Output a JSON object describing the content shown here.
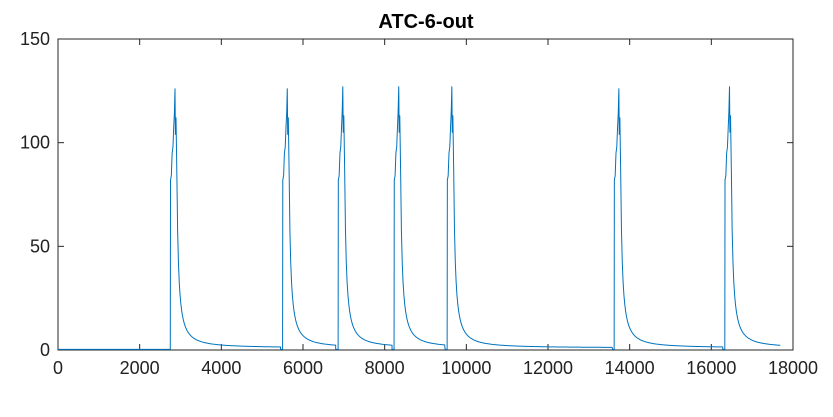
{
  "chart_data": {
    "type": "line",
    "title": "ATC-6-out",
    "xlabel": "",
    "ylabel": "",
    "xlim": [
      0,
      18000
    ],
    "ylim": [
      0,
      150
    ],
    "xticks": [
      0,
      2000,
      4000,
      6000,
      8000,
      10000,
      12000,
      14000,
      16000,
      18000
    ],
    "yticks": [
      0,
      50,
      100,
      150
    ],
    "grid": false,
    "legend": "none",
    "series": [
      {
        "color": "#0072BD",
        "description": "Baseline near 0 with seven sharp spikes (~120-127 peak) followed by exponential decay toward ~1",
        "baseline": 0.3,
        "end_x": 17700,
        "events": [
          {
            "start": 2750,
            "peak": 126,
            "tail_end": 5450
          },
          {
            "start": 5500,
            "peak": 126,
            "tail_end": 6800
          },
          {
            "start": 6860,
            "peak": 127,
            "tail_end": 8180
          },
          {
            "start": 8230,
            "peak": 127,
            "tail_end": 9480
          },
          {
            "start": 9530,
            "peak": 127,
            "tail_end": 13580
          },
          {
            "start": 13620,
            "peak": 126,
            "tail_end": 16280
          },
          {
            "start": 16330,
            "peak": 127,
            "tail_end": 17700
          }
        ]
      }
    ]
  }
}
